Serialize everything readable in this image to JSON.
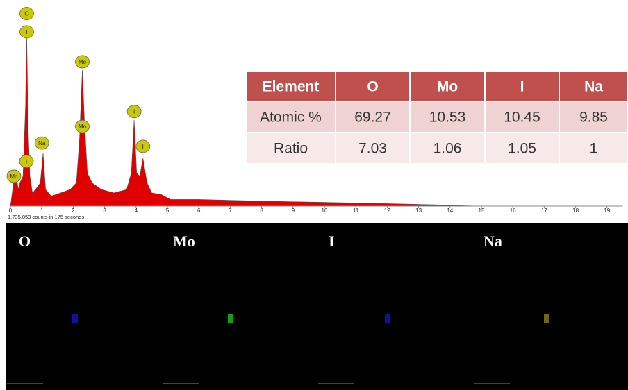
{
  "chart_data": {
    "type": "area",
    "color": "#e00000",
    "x": [
      0,
      0.1,
      0.18,
      0.25,
      0.3,
      0.4,
      0.48,
      0.52,
      0.56,
      0.62,
      0.7,
      0.8,
      0.95,
      1.04,
      1.12,
      1.3,
      1.6,
      1.9,
      2.1,
      2.2,
      2.29,
      2.36,
      2.45,
      2.6,
      2.9,
      3.3,
      3.7,
      3.85,
      3.94,
      4.02,
      4.12,
      4.22,
      4.35,
      4.5,
      4.8,
      5.1,
      6,
      8,
      10,
      12,
      13.5,
      14.5,
      15,
      19.5
    ],
    "values": [
      0,
      14,
      20,
      10,
      14,
      18,
      60,
      103,
      50,
      18,
      8,
      10,
      14,
      32,
      10,
      6,
      8,
      10,
      14,
      40,
      82,
      50,
      20,
      14,
      10,
      8,
      10,
      20,
      52,
      20,
      18,
      29,
      14,
      8,
      7,
      4,
      4,
      3,
      2.3,
      1.5,
      0.8,
      0.2,
      0,
      0
    ],
    "xlim": [
      0,
      19.5
    ],
    "ylim": [
      0,
      120
    ],
    "xticks": [
      0,
      1,
      2,
      3,
      4,
      5,
      6,
      7,
      8,
      9,
      10,
      11,
      12,
      13,
      14,
      15,
      16,
      17,
      18,
      19
    ],
    "caption": "1,735,053 counts in 175 seconds",
    "peak_labels": [
      {
        "label": "O",
        "x": 0.52,
        "y": 116
      },
      {
        "label": "I",
        "x": 0.52,
        "y": 105
      },
      {
        "label": "Mo",
        "x": 2.29,
        "y": 87
      },
      {
        "label": "Mo",
        "x": 2.29,
        "y": 48
      },
      {
        "label": "Na",
        "x": 1.0,
        "y": 38
      },
      {
        "label": "I",
        "x": 0.51,
        "y": 27
      },
      {
        "label": "I",
        "x": 3.94,
        "y": 57
      },
      {
        "label": "I",
        "x": 4.22,
        "y": 36
      },
      {
        "label": "Mo",
        "x": 0.11,
        "y": 18
      }
    ]
  },
  "table": {
    "header": [
      "Element",
      "O",
      "Mo",
      "I",
      "Na"
    ],
    "rows": [
      [
        "Atomic %",
        69.27,
        10.53,
        10.45,
        9.85
      ],
      [
        "Ratio",
        7.03,
        1.06,
        1.05,
        1
      ]
    ]
  },
  "maps": {
    "labels": [
      "O",
      "Mo",
      "I",
      "Na"
    ]
  }
}
